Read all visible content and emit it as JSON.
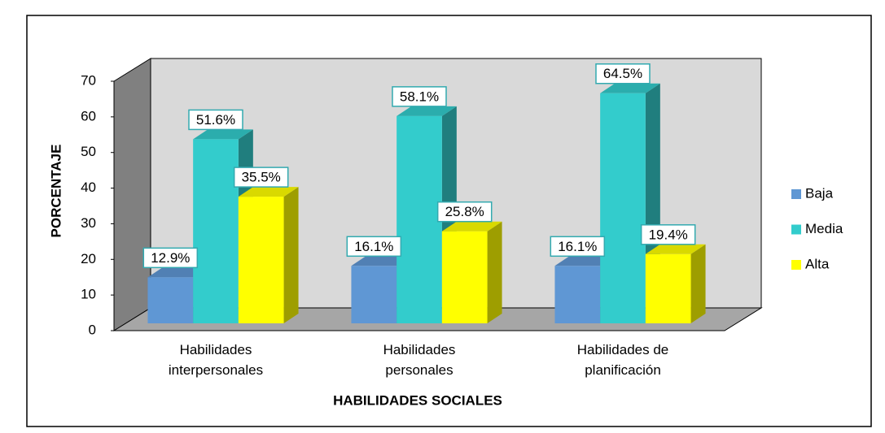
{
  "chart_data": {
    "type": "bar3d",
    "categories": [
      "Habilidades interpersonales",
      "Habilidades personales",
      "Habilidades de planificación"
    ],
    "series": [
      {
        "name": "Baja",
        "color": "#5f97d4",
        "values": [
          12.9,
          16.1,
          16.1
        ],
        "value_labels": [
          "12.9%",
          "16.1%",
          "16.1%"
        ]
      },
      {
        "name": "Media",
        "color": "#33cccc",
        "values": [
          51.6,
          58.1,
          64.5
        ],
        "value_labels": [
          "51.6%",
          "58.1%",
          "64.5%"
        ]
      },
      {
        "name": "Alta",
        "color": "#ffff00",
        "values": [
          35.5,
          25.8,
          19.4
        ],
        "value_labels": [
          "35.5%",
          "25.8%",
          "19.4%"
        ]
      }
    ],
    "ylim": [
      0,
      70
    ],
    "yticks": [
      0,
      10,
      20,
      30,
      40,
      50,
      60,
      70
    ],
    "ylabel": "PORCENTAJE",
    "xlabel": "HABILIDADES SOCIALES",
    "legend": "right"
  }
}
